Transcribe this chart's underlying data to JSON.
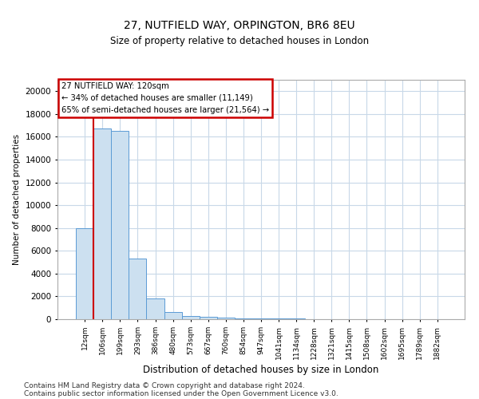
{
  "title1": "27, NUTFIELD WAY, ORPINGTON, BR6 8EU",
  "title2": "Size of property relative to detached houses in London",
  "xlabel": "Distribution of detached houses by size in London",
  "ylabel": "Number of detached properties",
  "annotation_title": "27 NUTFIELD WAY: 120sqm",
  "annotation_line1": "← 34% of detached houses are smaller (11,149)",
  "annotation_line2": "65% of semi-detached houses are larger (21,564) →",
  "footer1": "Contains HM Land Registry data © Crown copyright and database right 2024.",
  "footer2": "Contains public sector information licensed under the Open Government Licence v3.0.",
  "bar_color": "#cce0f0",
  "bar_edge_color": "#5b9bd5",
  "vline_color": "#cc0000",
  "annotation_box_color": "#ffffff",
  "annotation_box_edge": "#cc0000",
  "grid_color": "#c8d8e8",
  "background_color": "#ffffff",
  "categories": [
    "12sqm",
    "106sqm",
    "199sqm",
    "293sqm",
    "386sqm",
    "480sqm",
    "573sqm",
    "667sqm",
    "760sqm",
    "854sqm",
    "947sqm",
    "1041sqm",
    "1134sqm",
    "1228sqm",
    "1321sqm",
    "1415sqm",
    "1508sqm",
    "1602sqm",
    "1695sqm",
    "1789sqm",
    "1882sqm"
  ],
  "values": [
    8000,
    16700,
    16500,
    5300,
    1800,
    600,
    280,
    200,
    130,
    100,
    80,
    50,
    40,
    30,
    20,
    10,
    8,
    6,
    4,
    3,
    2
  ],
  "ylim": [
    0,
    21000
  ],
  "yticks": [
    0,
    2000,
    4000,
    6000,
    8000,
    10000,
    12000,
    14000,
    16000,
    18000,
    20000
  ],
  "vline_index": 1
}
